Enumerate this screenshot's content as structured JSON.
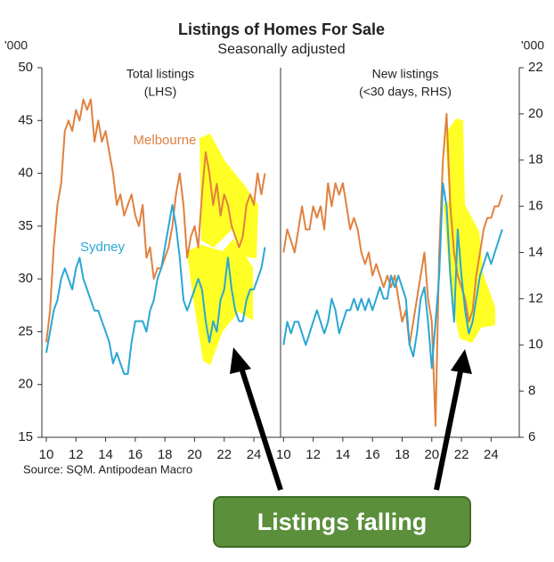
{
  "chart_data": [
    {
      "type": "line",
      "title": "Listings of Homes For Sale",
      "subtitle": "Seasonally adjusted",
      "source": "Source: SQM. Antipodean Macro",
      "annotation": "Listings falling",
      "panel_label": [
        "Total listings",
        "(LHS)"
      ],
      "ylabel": "'000",
      "xlim": [
        9.7,
        25.8
      ],
      "xticks": [
        10,
        12,
        14,
        16,
        18,
        20,
        22,
        24
      ],
      "ylim": [
        15,
        50
      ],
      "yticks": [
        15,
        20,
        25,
        30,
        35,
        40,
        45,
        50
      ],
      "x": [
        10,
        10.25,
        10.5,
        10.75,
        11,
        11.25,
        11.5,
        11.75,
        12,
        12.25,
        12.5,
        12.75,
        13,
        13.25,
        13.5,
        13.75,
        14,
        14.25,
        14.5,
        14.75,
        15,
        15.25,
        15.5,
        15.75,
        16,
        16.25,
        16.5,
        16.75,
        17,
        17.25,
        17.5,
        17.75,
        18,
        18.25,
        18.5,
        18.75,
        19,
        19.25,
        19.5,
        19.75,
        20,
        20.25,
        20.5,
        20.75,
        21,
        21.25,
        21.5,
        21.75,
        22,
        22.25,
        22.5,
        22.75,
        23,
        23.25,
        23.5,
        23.75,
        24,
        24.25,
        24.5,
        24.75
      ],
      "series": [
        {
          "name": "Melbourne",
          "color": "#e0813f",
          "values": [
            24,
            27,
            33,
            37,
            39,
            44,
            45,
            44,
            46,
            45,
            47,
            46,
            47,
            43,
            45,
            43,
            44,
            42,
            40,
            37,
            38,
            36,
            37,
            38,
            36,
            35,
            37,
            32,
            33,
            30,
            31,
            31,
            32,
            33,
            35,
            38,
            40,
            37,
            32,
            34,
            35,
            33,
            38,
            42,
            40,
            37,
            39,
            36,
            38,
            37,
            35,
            34,
            33,
            34,
            37,
            38,
            37,
            40,
            38,
            40
          ]
        },
        {
          "name": "Sydney",
          "color": "#2aa7d4",
          "values": [
            23,
            25,
            27,
            28,
            30,
            31,
            30,
            29,
            31,
            32,
            30,
            29,
            28,
            27,
            27,
            26,
            25,
            24,
            22,
            23,
            22,
            21,
            21,
            24,
            26,
            26,
            26,
            25,
            27,
            28,
            30,
            31,
            33,
            35,
            37,
            35,
            32,
            28,
            27,
            28,
            29,
            30,
            29,
            26,
            24,
            26,
            25,
            28,
            29,
            32,
            29,
            27,
            26,
            26,
            28,
            29,
            29,
            30,
            31,
            33
          ]
        }
      ]
    },
    {
      "type": "line",
      "panel_label": [
        "New listings",
        "(<30 days, RHS)"
      ],
      "ylabel": "'000",
      "xlim": [
        9.8,
        25.9
      ],
      "xticks": [
        10,
        12,
        14,
        16,
        18,
        20,
        22,
        24
      ],
      "ylim": [
        6,
        22
      ],
      "yticks": [
        6,
        8,
        10,
        12,
        14,
        16,
        18,
        20,
        22
      ],
      "x": [
        10,
        10.25,
        10.5,
        10.75,
        11,
        11.25,
        11.5,
        11.75,
        12,
        12.25,
        12.5,
        12.75,
        13,
        13.25,
        13.5,
        13.75,
        14,
        14.25,
        14.5,
        14.75,
        15,
        15.25,
        15.5,
        15.75,
        16,
        16.25,
        16.5,
        16.75,
        17,
        17.25,
        17.5,
        17.75,
        18,
        18.25,
        18.5,
        18.75,
        19,
        19.25,
        19.5,
        19.75,
        20,
        20.25,
        20.5,
        20.75,
        21,
        21.25,
        21.5,
        21.75,
        22,
        22.25,
        22.5,
        22.75,
        23,
        23.25,
        23.5,
        23.75,
        24,
        24.25,
        24.5,
        24.75
      ],
      "series": [
        {
          "color": "#e0813f",
          "values": [
            14,
            15,
            14.5,
            14,
            15,
            16,
            15,
            15,
            16,
            15.5,
            16,
            15,
            17,
            16,
            17,
            16.5,
            17,
            16,
            15,
            15.5,
            15,
            14,
            13.5,
            14,
            13,
            13.5,
            13,
            12.5,
            13,
            12.5,
            13,
            12,
            11,
            11.5,
            10,
            11,
            12,
            13,
            14,
            12,
            11,
            6.5,
            14,
            18,
            20,
            16,
            14,
            13,
            12.5,
            12,
            11,
            11.5,
            13,
            14,
            15,
            15.5,
            15.5,
            16,
            16,
            16.5
          ]
        },
        {
          "color": "#2aa7d4",
          "values": [
            10,
            11,
            10.5,
            11,
            11,
            10.5,
            10,
            10.5,
            11,
            11.5,
            11,
            10.5,
            11,
            12,
            11.5,
            10.5,
            11,
            11.5,
            11.5,
            12,
            11.5,
            12,
            11.5,
            12,
            11.5,
            12,
            12.5,
            12,
            12,
            13,
            12.5,
            13,
            12.5,
            12,
            10,
            9.5,
            10.5,
            12,
            12.5,
            11,
            9,
            11,
            13,
            17,
            16,
            13,
            11,
            15,
            13,
            11.5,
            10.5,
            11,
            12,
            13,
            13.5,
            14,
            13.5,
            14,
            14.5,
            15
          ]
        }
      ]
    }
  ]
}
